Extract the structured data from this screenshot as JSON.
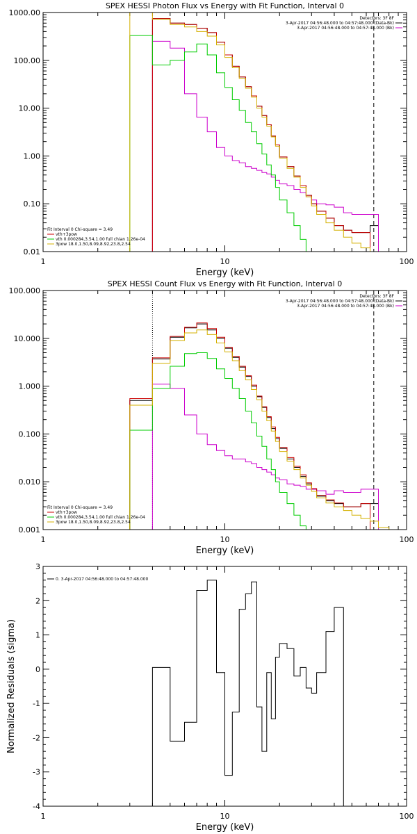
{
  "panels": [
    {
      "id": "photon",
      "title": "SPEX HESSI Photon Flux vs Energy with Fit Function, Interval 0",
      "xlabel": "Energy (keV)",
      "ylabel": "",
      "yticks": [
        "1000.00",
        "100.00",
        "10.00",
        "1.00",
        "0.10",
        "0.01"
      ],
      "xticks": [
        "1",
        "10",
        "100"
      ],
      "legend_right": {
        "header": "Detectors: 3F 8F",
        "rows": [
          {
            "text": "3-Apr-2017 04:56:48.000 to 04:57:48.000 (Data-Bk)",
            "color": "#000000"
          },
          {
            "text": "3-Apr-2017 04:56:48.000 to 04:57:48.000 (Bk)",
            "color": "#cc00cc"
          }
        ]
      },
      "legend_left": {
        "header": "Fit Interval 0   Chi-square = 3.49",
        "rows": [
          {
            "text": "vth+3pow",
            "color": "#cc0000"
          },
          {
            "text": "vth 0.000284,3.54,1.00   full chian 1.26e-04",
            "color": "#00cc00"
          },
          {
            "text": "3pow 18.0,1.50,8.09,8.92,23.8,2.54",
            "color": "#d4b000"
          }
        ]
      }
    },
    {
      "id": "count",
      "title": "SPEX HESSI Count Flux vs Energy with Fit Function, Interval 0",
      "xlabel": "Energy (keV)",
      "ylabel": "",
      "yticks": [
        "100.000",
        "10.000",
        "1.000",
        "0.100",
        "0.010",
        "0.001"
      ],
      "xticks": [
        "1",
        "10",
        "100"
      ],
      "legend_right": {
        "header": "Detectors: 3F 8F",
        "rows": [
          {
            "text": "3-Apr-2017 04:56:48.000 to 04:57:48.000 (Data-Bk)",
            "color": "#000000"
          },
          {
            "text": "3-Apr-2017 04:56:48.000 to 04:57:48.000 (Bk)",
            "color": "#cc00cc"
          }
        ]
      },
      "legend_left": {
        "header": "Fit Interval 0   Chi-square = 3.49",
        "rows": [
          {
            "text": "vth+3pow",
            "color": "#cc0000"
          },
          {
            "text": "vth 0.000284,3.54,1.00   full chian 1.26e-04",
            "color": "#00cc00"
          },
          {
            "text": "3pow 18.0,1.50,8.09,8.92,23.8,2.54",
            "color": "#d4b000"
          }
        ]
      }
    },
    {
      "id": "residuals",
      "title": "",
      "xlabel": "Energy (keV)",
      "ylabel": "Normalized Residuals (sigma)",
      "yticks": [
        "3",
        "2",
        "1",
        "0",
        "-1",
        "-2",
        "-3",
        "-4"
      ],
      "xticks": [
        "1",
        "10",
        "100"
      ],
      "legend_left": {
        "header": "",
        "rows": [
          {
            "text": "0. 3-Apr-2017 04:56:48.000 to 04:57:48.000",
            "color": "#000000"
          }
        ]
      }
    }
  ],
  "chart_data": [
    {
      "type": "line",
      "title": "SPEX HESSI Photon Flux vs Energy with Fit Function, Interval 0",
      "xlabel": "Energy (keV)",
      "xscale": "log",
      "yscale": "log",
      "xlim": [
        1,
        100
      ],
      "ylim": [
        0.01,
        1000
      ],
      "grid": false,
      "legend_placement": "top-right and bottom-left",
      "edges": [
        3,
        4,
        5,
        6,
        7,
        8,
        9,
        10,
        11,
        12,
        13,
        14,
        15,
        16,
        17,
        18,
        19,
        20,
        22,
        24,
        26,
        28,
        30,
        32,
        36,
        40,
        45,
        50,
        56,
        63,
        70,
        80
      ],
      "vlines": [
        {
          "x": 4,
          "style": "dotted",
          "color": "#cc00cc"
        },
        {
          "x": 66,
          "style": "dashed",
          "color": "#000000"
        }
      ],
      "series": [
        {
          "name": "Data-Bk",
          "color": "#000000",
          "values": [
            null,
            750,
            600,
            560,
            470,
            380,
            240,
            130,
            75,
            45,
            28,
            18,
            11,
            7,
            4.5,
            2.6,
            1.7,
            0.95,
            0.6,
            0.38,
            0.24,
            0.15,
            0.1,
            0.07,
            0.05,
            0.035,
            0.028,
            0.025,
            0.025,
            0.035,
            null
          ]
        },
        {
          "name": "Bk",
          "color": "#cc00cc",
          "values": [
            null,
            250,
            180,
            20,
            6.5,
            3.2,
            1.5,
            1.0,
            0.8,
            0.72,
            0.6,
            0.55,
            0.5,
            0.45,
            0.42,
            0.36,
            0.31,
            0.26,
            0.24,
            0.2,
            0.17,
            0.14,
            0.12,
            0.1,
            0.095,
            0.085,
            0.065,
            0.06,
            0.06,
            0.06,
            null
          ]
        },
        {
          "name": "vth+3pow",
          "color": "#cc0000",
          "values": [
            null,
            750,
            600,
            560,
            470,
            380,
            240,
            130,
            75,
            45,
            28,
            18,
            11,
            7,
            4.5,
            2.6,
            1.7,
            0.95,
            0.6,
            0.38,
            0.24,
            0.15,
            0.1,
            0.07,
            0.05,
            0.035,
            0.028,
            0.025,
            0.025,
            null,
            null
          ]
        },
        {
          "name": "vth",
          "color": "#00cc00",
          "values": [
            330,
            80,
            100,
            150,
            220,
            130,
            55,
            27,
            15,
            9,
            5,
            3.2,
            1.8,
            1.1,
            0.65,
            0.4,
            0.22,
            0.12,
            0.065,
            0.035,
            0.018,
            0.01,
            null,
            null,
            null,
            null,
            null,
            null,
            null,
            null,
            null
          ]
        },
        {
          "name": "3pow",
          "color": "#d4b000",
          "values": [
            1000,
            720,
            560,
            500,
            400,
            320,
            210,
            115,
            70,
            42,
            26,
            17,
            10,
            6.5,
            4.2,
            2.5,
            1.6,
            0.9,
            0.55,
            0.36,
            0.22,
            0.14,
            0.09,
            0.06,
            0.04,
            0.028,
            0.02,
            0.015,
            0.012,
            0.01,
            0.01
          ]
        }
      ]
    },
    {
      "type": "line",
      "title": "SPEX HESSI Count Flux vs Energy with Fit Function, Interval 0",
      "xlabel": "Energy (keV)",
      "xscale": "log",
      "yscale": "log",
      "xlim": [
        1,
        100
      ],
      "ylim": [
        0.001,
        100
      ],
      "grid": false,
      "legend_placement": "top-right and bottom-left",
      "edges": [
        3,
        4,
        5,
        6,
        7,
        8,
        9,
        10,
        11,
        12,
        13,
        14,
        15,
        16,
        17,
        18,
        19,
        20,
        22,
        24,
        26,
        28,
        30,
        32,
        36,
        40,
        45,
        50,
        56,
        63,
        70,
        80
      ],
      "vlines": [
        {
          "x": 4,
          "style": "dotted",
          "color": "#000000"
        },
        {
          "x": 66,
          "style": "dashed",
          "color": "#000000"
        }
      ],
      "series": [
        {
          "name": "Data-Bk",
          "color": "#000000",
          "values": [
            0.5,
            3.7,
            10.5,
            16.5,
            20,
            15,
            10,
            6.2,
            4,
            2.5,
            1.6,
            1.0,
            0.6,
            0.36,
            0.22,
            0.13,
            0.08,
            0.05,
            0.03,
            0.02,
            0.013,
            0.009,
            0.007,
            0.005,
            0.004,
            0.0035,
            0.003,
            0.003,
            0.0035,
            0.0035,
            null
          ]
        },
        {
          "name": "Bk",
          "color": "#cc00cc",
          "values": [
            null,
            1.1,
            0.9,
            0.25,
            0.1,
            0.06,
            0.045,
            0.035,
            0.03,
            0.03,
            0.026,
            0.024,
            0.02,
            0.018,
            0.016,
            0.014,
            0.012,
            0.011,
            0.009,
            0.0085,
            0.008,
            0.007,
            0.007,
            0.0065,
            0.0055,
            0.0065,
            0.006,
            0.006,
            0.007,
            0.007,
            null
          ]
        },
        {
          "name": "vth+3pow",
          "color": "#cc0000",
          "values": [
            0.55,
            3.9,
            11,
            17,
            21,
            16,
            10.5,
            6.5,
            4.2,
            2.6,
            1.65,
            1.05,
            0.62,
            0.37,
            0.23,
            0.14,
            0.085,
            0.052,
            0.032,
            0.021,
            0.014,
            0.0095,
            0.0072,
            0.0052,
            0.0042,
            0.0036,
            0.003,
            0.003,
            0.0035,
            null,
            null
          ]
        },
        {
          "name": "vth",
          "color": "#00cc00",
          "values": [
            0.12,
            0.9,
            2.6,
            4.8,
            5.0,
            3.8,
            2.3,
            1.45,
            0.9,
            0.55,
            0.3,
            0.17,
            0.09,
            0.055,
            0.03,
            0.018,
            0.01,
            0.006,
            0.0035,
            0.002,
            0.0012,
            0.001,
            null,
            null,
            null,
            null,
            null,
            null,
            null,
            null,
            null
          ]
        },
        {
          "name": "3pow",
          "color": "#d4b000",
          "values": [
            0.4,
            3.0,
            9,
            13,
            15,
            12,
            8,
            5.2,
            3.4,
            2.1,
            1.35,
            0.85,
            0.52,
            0.3,
            0.19,
            0.115,
            0.07,
            0.043,
            0.027,
            0.018,
            0.012,
            0.0085,
            0.0063,
            0.0046,
            0.0036,
            0.003,
            0.0025,
            0.002,
            0.0017,
            0.0015,
            0.0011
          ]
        }
      ]
    },
    {
      "type": "line",
      "title": "",
      "xlabel": "Energy (keV)",
      "ylabel": "Normalized Residuals (sigma)",
      "xscale": "log",
      "yscale": "linear",
      "xlim": [
        1,
        100
      ],
      "ylim": [
        -4,
        3
      ],
      "grid": false,
      "legend_placement": "top-left",
      "edges": [
        4,
        5,
        6,
        7,
        8,
        9,
        10,
        11,
        12,
        13,
        14,
        15,
        16,
        17,
        18,
        19,
        20,
        22,
        24,
        26,
        28,
        30,
        32,
        36,
        40,
        45,
        50,
        56,
        63,
        70
      ],
      "series": [
        {
          "name": "0. 3-Apr-2017 04:56:48.000 to 04:57:48.000",
          "color": "#000000",
          "values": [
            0.05,
            -2.1,
            -1.55,
            2.3,
            2.6,
            -0.1,
            -3.1,
            -1.25,
            1.75,
            2.2,
            2.55,
            -1.1,
            -2.4,
            -0.1,
            -1.45,
            0.35,
            0.75,
            0.6,
            -0.2,
            0.05,
            -0.55,
            -0.7,
            -0.1,
            1.1,
            1.8
          ]
        }
      ]
    }
  ]
}
